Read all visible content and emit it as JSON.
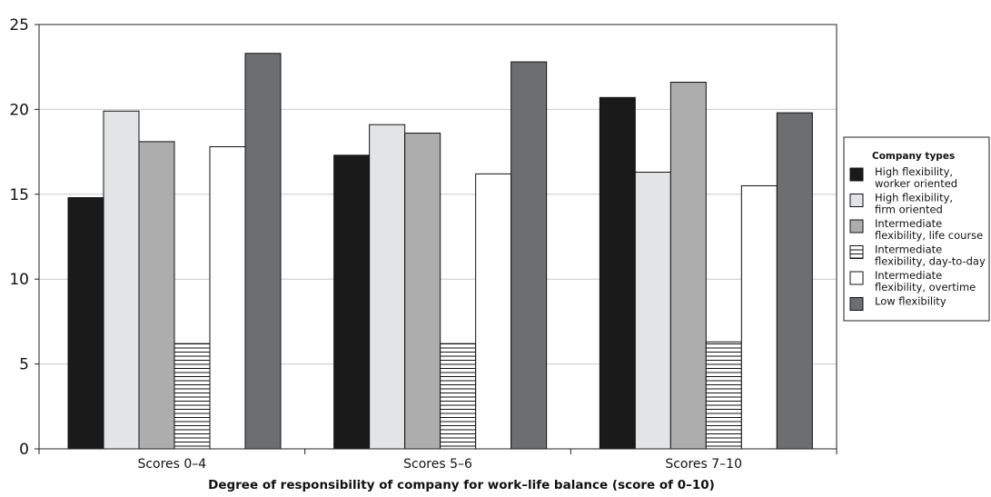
{
  "chart_data": {
    "type": "bar",
    "title": "",
    "xlabel": "Degree of responsibility of company for work–life balance (score of 0–10)",
    "ylabel": "",
    "ylim": [
      0,
      25
    ],
    "yticks": [
      0,
      5,
      10,
      15,
      20,
      25
    ],
    "grid": true,
    "legend_position": "right",
    "legend_title": "Company types",
    "categories": [
      "Scores 0–4",
      "Scores 5–6",
      "Scores 7–10"
    ],
    "series": [
      {
        "name": "High flexibility, worker oriented",
        "label_lines": [
          "High flexibility,",
          "worker oriented"
        ],
        "fill": "#1a1a1a",
        "pattern": "solid",
        "values": [
          14.8,
          17.3,
          20.7
        ]
      },
      {
        "name": "High flexibility, firm oriented",
        "label_lines": [
          "High flexibility,",
          "firm oriented"
        ],
        "fill": "#e3e4e6",
        "pattern": "solid",
        "values": [
          19.9,
          19.1,
          16.3
        ]
      },
      {
        "name": "Intermediate flexibility, life course",
        "label_lines": [
          "Intermediate",
          "flexibility, life course"
        ],
        "fill": "#adadad",
        "pattern": "solid",
        "values": [
          18.1,
          18.6,
          21.6
        ]
      },
      {
        "name": "Intermediate flexibility, day-to-day",
        "label_lines": [
          "Intermediate",
          "flexibility, day-to-day"
        ],
        "fill": "#ffffff",
        "pattern": "horizontal-lines",
        "values": [
          6.2,
          6.2,
          6.3
        ]
      },
      {
        "name": "Intermediate flexibility, overtime",
        "label_lines": [
          "Intermediate",
          "flexibility, overtime"
        ],
        "fill": "#ffffff",
        "pattern": "solid",
        "values": [
          17.8,
          16.2,
          15.5
        ]
      },
      {
        "name": "Low flexibility",
        "label_lines": [
          "Low flexibility"
        ],
        "fill": "#6d6e70",
        "pattern": "solid",
        "values": [
          23.3,
          22.8,
          19.8
        ]
      }
    ]
  }
}
